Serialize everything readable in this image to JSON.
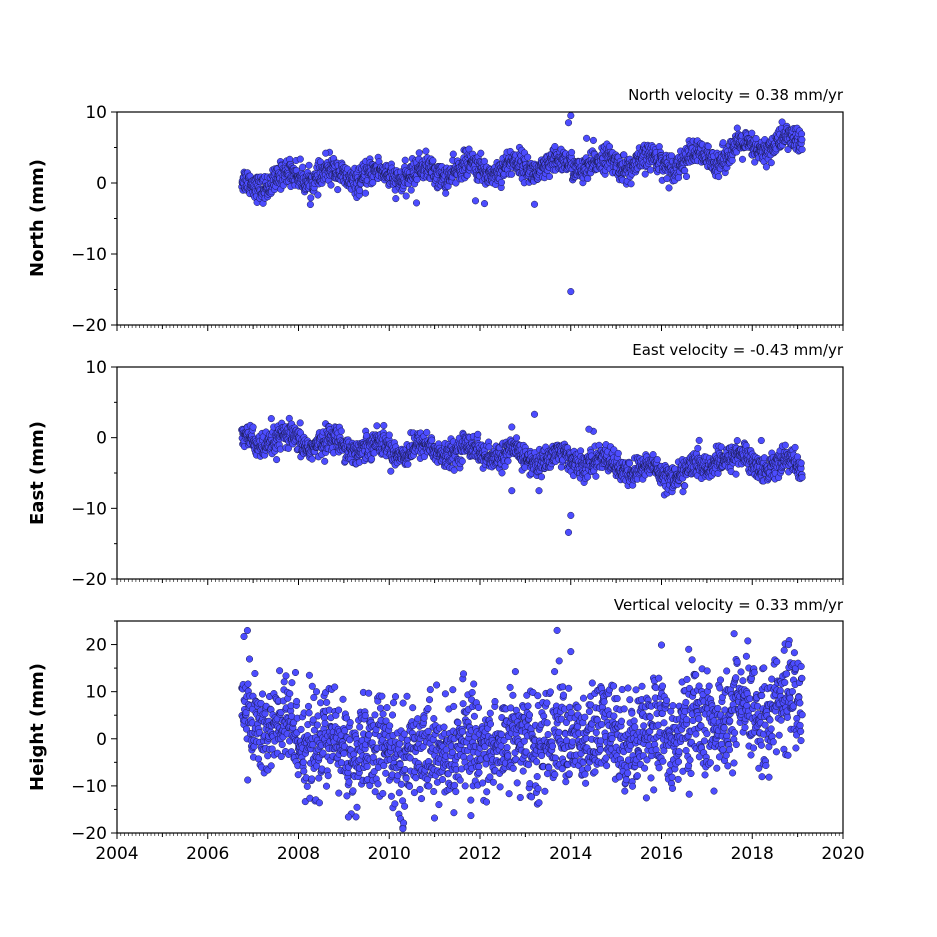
{
  "colors": {
    "marker_fill": "#4c4cff",
    "marker_edge": "#1a1a4d",
    "axes": "#000000"
  },
  "x_tick_labels": [
    "2004",
    "2006",
    "2008",
    "2010",
    "2012",
    "2014",
    "2016",
    "2018",
    "2020"
  ],
  "chart_data": [
    {
      "type": "scatter",
      "ylabel": "North (mm)",
      "annotation": "North velocity = 0.38 mm/yr",
      "xlim": [
        2004,
        2020
      ],
      "ylim": [
        -20,
        10
      ],
      "yticks": [
        -20,
        -10,
        0,
        10
      ],
      "ytick_labels": [
        "−20",
        "−10",
        "0",
        "10"
      ],
      "grid": false,
      "trend_points": [
        [
          2006.75,
          -0.5
        ],
        [
          2008,
          1.0
        ],
        [
          2010,
          1.0
        ],
        [
          2012,
          2.0
        ],
        [
          2014,
          2.5
        ],
        [
          2016,
          3.0
        ],
        [
          2017,
          3.5
        ],
        [
          2018,
          5.0
        ],
        [
          2019.1,
          6.0
        ]
      ],
      "series": [
        {
          "values": [
            [
              2006.75,
              -0.5
            ],
            [
              2007.5,
              0.5
            ],
            [
              2008.2,
              1.5
            ],
            [
              2009.0,
              1.0
            ],
            [
              2010.0,
              1.5
            ],
            [
              2011.0,
              2.0
            ],
            [
              2012.0,
              2.0
            ],
            [
              2013.0,
              2.5
            ],
            [
              2014.0,
              2.5
            ],
            [
              2015.0,
              2.5
            ],
            [
              2016.0,
              3.0
            ],
            [
              2017.0,
              3.5
            ],
            [
              2017.5,
              5.0
            ],
            [
              2018.5,
              5.5
            ],
            [
              2019.1,
              6.0
            ]
          ],
          "outliers": [
            [
              2014.0,
              9.5
            ],
            [
              2013.95,
              8.5
            ],
            [
              2014.35,
              6.3
            ],
            [
              2014.0,
              -15.3
            ],
            [
              2013.2,
              -3.0
            ],
            [
              2011.9,
              -2.5
            ],
            [
              2012.1,
              -2.9
            ],
            [
              2010.6,
              -2.8
            ],
            [
              2014.5,
              6.0
            ],
            [
              2008.6,
              4.2
            ]
          ]
        }
      ]
    },
    {
      "type": "scatter",
      "ylabel": "East (mm)",
      "annotation": "East velocity = -0.43 mm/yr",
      "xlim": [
        2004,
        2020
      ],
      "ylim": [
        -20,
        10
      ],
      "yticks": [
        -20,
        -10,
        0,
        10
      ],
      "ytick_labels": [
        "−20",
        "−10",
        "0",
        "10"
      ],
      "grid": false,
      "trend_points": [
        [
          2006.75,
          -0.5
        ],
        [
          2008,
          -0.5
        ],
        [
          2010,
          -1.5
        ],
        [
          2012,
          -2.0
        ],
        [
          2013,
          -2.8
        ],
        [
          2014,
          -3.0
        ],
        [
          2015,
          -4.0
        ],
        [
          2016,
          -5.0
        ],
        [
          2017,
          -4.5
        ],
        [
          2017.2,
          -2.5
        ],
        [
          2018,
          -3.5
        ],
        [
          2019.1,
          -4.0
        ]
      ],
      "series": [
        {
          "values": [
            [
              2006.75,
              -0.5
            ],
            [
              2008.0,
              -0.5
            ],
            [
              2010.0,
              -1.5
            ],
            [
              2012.0,
              -2.0
            ],
            [
              2014.0,
              -3.0
            ],
            [
              2016.0,
              -5.0
            ],
            [
              2017.2,
              -2.5
            ],
            [
              2019.1,
              -4.0
            ]
          ],
          "outliers": [
            [
              2013.2,
              3.3
            ],
            [
              2014.0,
              -11.0
            ],
            [
              2013.95,
              -13.4
            ],
            [
              2012.7,
              -7.5
            ],
            [
              2013.3,
              -7.5
            ],
            [
              2014.5,
              0.9
            ],
            [
              2014.4,
              1.2
            ],
            [
              2018.2,
              -0.4
            ],
            [
              2007.0,
              1.5
            ],
            [
              2007.4,
              2.7
            ]
          ]
        }
      ]
    },
    {
      "type": "scatter",
      "ylabel": "Height (mm)",
      "annotation": "Vertical velocity = 0.33 mm/yr",
      "xlim": [
        2004,
        2020
      ],
      "ylim": [
        -20,
        25
      ],
      "yticks": [
        -20,
        -10,
        0,
        10,
        20
      ],
      "ytick_labels": [
        "−20",
        "−10",
        "0",
        "10",
        "20"
      ],
      "grid": false,
      "trend_points": [
        [
          2006.75,
          5.0
        ],
        [
          2007.5,
          2.0
        ],
        [
          2008.5,
          -1.0
        ],
        [
          2009.5,
          -3.0
        ],
        [
          2010.5,
          -3.0
        ],
        [
          2011.5,
          -2.0
        ],
        [
          2012.5,
          -0.5
        ],
        [
          2013.5,
          0.0
        ],
        [
          2014.5,
          0.5
        ],
        [
          2015.5,
          1.0
        ],
        [
          2016.5,
          2.0
        ],
        [
          2017.5,
          4.0
        ],
        [
          2018.5,
          7.0
        ],
        [
          2019.1,
          8.0
        ]
      ],
      "series": [
        {
          "values": [
            [
              2006.75,
              5.0
            ],
            [
              2008.5,
              -1.0
            ],
            [
              2010.0,
              -3.0
            ],
            [
              2012.0,
              -1.0
            ],
            [
              2014.0,
              0.5
            ],
            [
              2016.0,
              1.5
            ],
            [
              2018.0,
              6.0
            ],
            [
              2019.1,
              8.0
            ]
          ],
          "outliers": [
            [
              2006.8,
              21.7
            ],
            [
              2013.7,
              23.0
            ],
            [
              2017.6,
              22.3
            ],
            [
              2010.3,
              -19.1
            ],
            [
              2009.1,
              -16.6
            ],
            [
              2011.8,
              -16.3
            ],
            [
              2014.0,
              18.5
            ],
            [
              2016.0,
              19.9
            ],
            [
              2018.8,
              20.0
            ],
            [
              2016.6,
              19.0
            ]
          ]
        }
      ]
    }
  ]
}
